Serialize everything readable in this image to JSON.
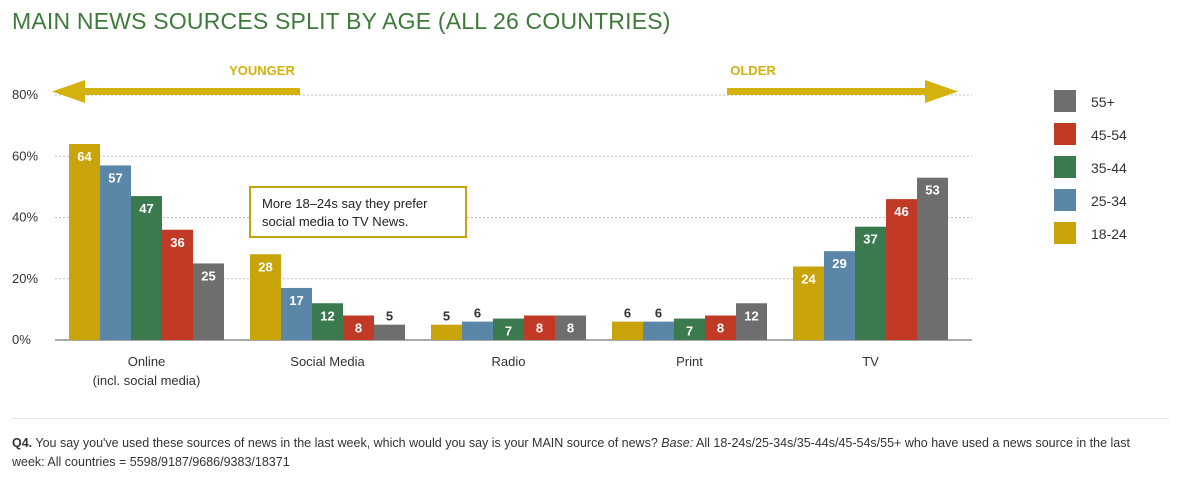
{
  "title": "MAIN NEWS SOURCES SPLIT BY AGE (ALL 26 COUNTRIES)",
  "footnote": {
    "q_label": "Q4.",
    "question": " You say you've used these sources of news in the last week, which would you say is your MAIN source of news? ",
    "base_label": "Base:",
    "base_text": " All 18-24s/25-34s/35-44s/45-54s/55+ who have used a news source in the last week: All countries = 5598/9187/9686/9383/18371"
  },
  "annotation": {
    "younger": "YOUNGER",
    "older": "OLDER",
    "callout": [
      "More 18–24s say they prefer",
      "social media to TV News."
    ]
  },
  "colors": {
    "title": "#3e7a3a",
    "arrow": "#d3b20f",
    "series": [
      "#c9a30a",
      "#5a87a8",
      "#3b7a4e",
      "#c23a26",
      "#6e6e6e"
    ]
  },
  "chart_data": {
    "type": "bar",
    "title": "MAIN NEWS SOURCES SPLIT BY AGE (ALL 26 COUNTRIES)",
    "categories": [
      "Online\n(incl. social media)",
      "Social Media",
      "Radio",
      "Print",
      "TV"
    ],
    "series": [
      {
        "name": "18-24",
        "values": [
          64,
          28,
          5,
          6,
          24
        ]
      },
      {
        "name": "25-34",
        "values": [
          57,
          17,
          6,
          6,
          29
        ]
      },
      {
        "name": "35-44",
        "values": [
          47,
          12,
          7,
          7,
          37
        ]
      },
      {
        "name": "45-54",
        "values": [
          36,
          8,
          8,
          8,
          46
        ]
      },
      {
        "name": "55+",
        "values": [
          25,
          5,
          8,
          12,
          53
        ]
      }
    ],
    "ylim": [
      0,
      80
    ],
    "yticks": [
      "0%",
      "20%",
      "40%",
      "60%",
      "80%"
    ],
    "legend_order": [
      "55+",
      "45-54",
      "35-44",
      "25-34",
      "18-24"
    ],
    "legend_position": "right",
    "grid": true
  }
}
